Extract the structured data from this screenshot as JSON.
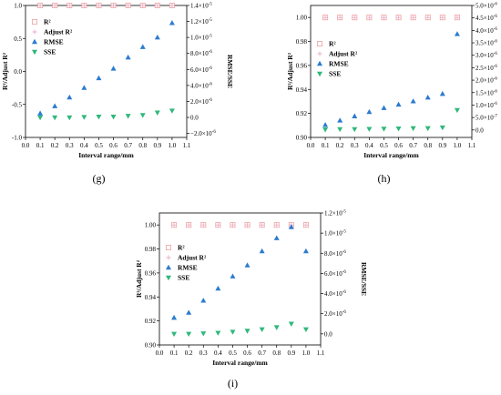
{
  "chart_data": [
    {
      "type": "scatter",
      "panel_label": "(g)",
      "xlabel": "Interval range/mm",
      "ylabel": "R²/Adjust R²",
      "y2label": "RMSE/SSE",
      "xlim": [
        0.0,
        1.1
      ],
      "x_ticks": [
        "0.0",
        "0.1",
        "0.2",
        "0.3",
        "0.4",
        "0.5",
        "0.6",
        "0.7",
        "0.8",
        "0.9",
        "1.0",
        "1.1"
      ],
      "ylim": [
        -1.0,
        1.0
      ],
      "y_ticks": [
        "-1.0",
        "-0.5",
        "0.0",
        "0.5",
        "1.0"
      ],
      "y2lim": [
        -2.5e-06,
        1.4e-05
      ],
      "y2_ticks": [
        {
          "sup": false,
          "text": "1.4×10",
          "exp": "-5",
          "v": 1.4e-05
        },
        {
          "text": "1.2×10",
          "exp": "-5",
          "v": 1.2e-05
        },
        {
          "text": "1.0×10",
          "exp": "-5",
          "v": 1e-05
        },
        {
          "text": "8.0×10",
          "exp": "-6",
          "v": 8e-06
        },
        {
          "text": "6.0×10",
          "exp": "-6",
          "v": 6e-06
        },
        {
          "text": "4.0×10",
          "exp": "-6",
          "v": 4e-06
        },
        {
          "text": "2.0×10",
          "exp": "-6",
          "v": 2e-06
        },
        {
          "text": "0.0",
          "exp": "",
          "v": 0.0
        },
        {
          "text": "−2.0×10",
          "exp": "-6",
          "v": -2e-06
        }
      ],
      "legend": {
        "placement": "top-left",
        "entries": [
          "R²",
          "Adjust R²",
          "RMSE",
          "SSE"
        ]
      },
      "x": [
        0.1,
        0.2,
        0.3,
        0.4,
        0.5,
        0.6,
        0.7,
        0.8,
        0.9,
        1.0
      ],
      "series": [
        {
          "name": "R²",
          "axis": "left",
          "marker": "square",
          "color": "#f0a0a0",
          "values": [
            1,
            1,
            1,
            1,
            1,
            1,
            1,
            1,
            1,
            1
          ]
        },
        {
          "name": "Adjust R²",
          "axis": "left",
          "marker": "plus",
          "color": "#e8b0c8",
          "values": [
            1,
            1,
            1,
            1,
            1,
            1,
            1,
            1,
            1,
            1
          ]
        },
        {
          "name": "RMSE",
          "axis": "right",
          "marker": "triangle-up",
          "color": "#2b7bd0",
          "values": [
            5e-07,
            1.4e-06,
            2.5e-06,
            3.7e-06,
            4.9e-06,
            6.1e-06,
            7.5e-06,
            8.8e-06,
            1e-05,
            1.18e-05
          ]
        },
        {
          "name": "SSE",
          "axis": "right",
          "marker": "triangle-down",
          "color": "#2fb87a",
          "values": [
            0.0,
            0.0,
            0.0,
            5e-08,
            1e-07,
            1e-07,
            2e-07,
            3e-07,
            6e-07,
            8.5e-07
          ]
        }
      ]
    },
    {
      "type": "scatter",
      "panel_label": "(h)",
      "xlabel": "Interval range/mm",
      "ylabel": "R²/Adjust R²",
      "y2label": "RMSE/SSE",
      "xlim": [
        0.0,
        1.1
      ],
      "x_ticks": [
        "0.0",
        "0.1",
        "0.2",
        "0.3",
        "0.4",
        "0.5",
        "0.6",
        "0.7",
        "0.8",
        "0.9",
        "1.0",
        "1.1"
      ],
      "ylim": [
        0.9,
        1.01
      ],
      "y_ticks": [
        "0.90",
        "0.92",
        "0.94",
        "0.96",
        "0.98",
        "1.00"
      ],
      "y2lim": [
        -3e-07,
        5e-06
      ],
      "y2_ticks": [
        {
          "text": "5.0×10",
          "exp": "-6",
          "v": 5e-06
        },
        {
          "text": "4.5×10",
          "exp": "-6",
          "v": 4.5e-06
        },
        {
          "text": "4.0×10",
          "exp": "-6",
          "v": 4e-06
        },
        {
          "text": "3.5×10",
          "exp": "-6",
          "v": 3.5e-06
        },
        {
          "text": "3.0×10",
          "exp": "-6",
          "v": 3e-06
        },
        {
          "text": "2.5×10",
          "exp": "-6",
          "v": 2.5e-06
        },
        {
          "text": "2.0×10",
          "exp": "-6",
          "v": 2e-06
        },
        {
          "text": "1.5×10",
          "exp": "-6",
          "v": 1.5e-06
        },
        {
          "text": "1.0×10",
          "exp": "-6",
          "v": 1e-06
        },
        {
          "text": "5.0×10",
          "exp": "-7",
          "v": 5e-07
        },
        {
          "text": "0.0",
          "exp": "",
          "v": 0.0
        }
      ],
      "legend": {
        "placement": "left",
        "entries": [
          "R²",
          "Adjust R²",
          "RMSE",
          "SSE"
        ]
      },
      "x": [
        0.1,
        0.2,
        0.3,
        0.4,
        0.5,
        0.6,
        0.7,
        0.8,
        0.9,
        1.0
      ],
      "series": [
        {
          "name": "R²",
          "axis": "left",
          "marker": "square",
          "color": "#f0a0a0",
          "values": [
            1,
            1,
            1,
            1,
            1,
            1,
            1,
            1,
            1,
            1
          ]
        },
        {
          "name": "Adjust R²",
          "axis": "left",
          "marker": "plus",
          "color": "#e8b0c8",
          "values": [
            1,
            1,
            1,
            1,
            1,
            1,
            1,
            1,
            1,
            1
          ]
        },
        {
          "name": "RMSE",
          "axis": "right",
          "marker": "triangle-up",
          "color": "#2b7bd0",
          "values": [
            2e-07,
            3.8e-07,
            5.5e-07,
            7.2e-07,
            8.8e-07,
            1.02e-06,
            1.15e-06,
            1.3e-06,
            1.45e-06,
            3.85e-06
          ]
        },
        {
          "name": "SSE",
          "axis": "right",
          "marker": "triangle-down",
          "color": "#2fb87a",
          "values": [
            2e-08,
            3e-08,
            3e-08,
            4e-08,
            5e-08,
            6e-08,
            7e-08,
            7e-08,
            1e-07,
            8e-07
          ]
        }
      ]
    },
    {
      "type": "scatter",
      "panel_label": "(i)",
      "xlabel": "Interval range/mm",
      "ylabel": "R²/Adjust R²",
      "y2label": "RMSE/SSE",
      "xlim": [
        0.0,
        1.1
      ],
      "x_ticks": [
        "0.0",
        "0.1",
        "0.2",
        "0.3",
        "0.4",
        "0.5",
        "0.6",
        "0.7",
        "0.8",
        "0.9",
        "1.0",
        "1.1"
      ],
      "ylim": [
        0.9,
        1.01
      ],
      "y_ticks": [
        "0.90",
        "0.92",
        "0.94",
        "0.96",
        "0.98",
        "1.00"
      ],
      "y2lim": [
        -1.1e-06,
        1.2e-05
      ],
      "y2_ticks": [
        {
          "text": "1.2×10",
          "exp": "-5",
          "v": 1.2e-05
        },
        {
          "text": "1.0×10",
          "exp": "-5",
          "v": 1e-05
        },
        {
          "text": "8.0×10",
          "exp": "-6",
          "v": 8e-06
        },
        {
          "text": "6.0×10",
          "exp": "-6",
          "v": 6e-06
        },
        {
          "text": "4.0×10",
          "exp": "-6",
          "v": 4e-06
        },
        {
          "text": "2.0×10",
          "exp": "-6",
          "v": 2e-06
        },
        {
          "text": "0.0",
          "exp": "",
          "v": 0.0
        }
      ],
      "legend": {
        "placement": "left",
        "entries": [
          "R²",
          "Adjust R²",
          "RMSE",
          "SSE"
        ]
      },
      "x": [
        0.1,
        0.2,
        0.3,
        0.4,
        0.5,
        0.6,
        0.7,
        0.8,
        0.9,
        1.0
      ],
      "series": [
        {
          "name": "R²",
          "axis": "left",
          "marker": "square",
          "color": "#f0a0a0",
          "values": [
            1,
            1,
            1,
            1,
            1,
            1,
            1,
            1,
            1,
            1
          ]
        },
        {
          "name": "Adjust R²",
          "axis": "left",
          "marker": "plus",
          "color": "#e8b0c8",
          "values": [
            1,
            1,
            1,
            1,
            1,
            1,
            1,
            1,
            1,
            1
          ]
        },
        {
          "name": "RMSE",
          "axis": "right",
          "marker": "triangle-up",
          "color": "#2b7bd0",
          "values": [
            1.6e-06,
            2.1e-06,
            3.3e-06,
            4.5e-06,
            5.7e-06,
            6.8e-06,
            8.2e-06,
            9.5e-06,
            1.06e-05,
            8.2e-06
          ]
        },
        {
          "name": "SSE",
          "axis": "right",
          "marker": "triangle-down",
          "color": "#2fb87a",
          "values": [
            0.0,
            0.0,
            5e-08,
            1e-07,
            2e-07,
            3e-07,
            4.5e-07,
            6.5e-07,
            1e-06,
            4.5e-07
          ]
        }
      ]
    }
  ]
}
